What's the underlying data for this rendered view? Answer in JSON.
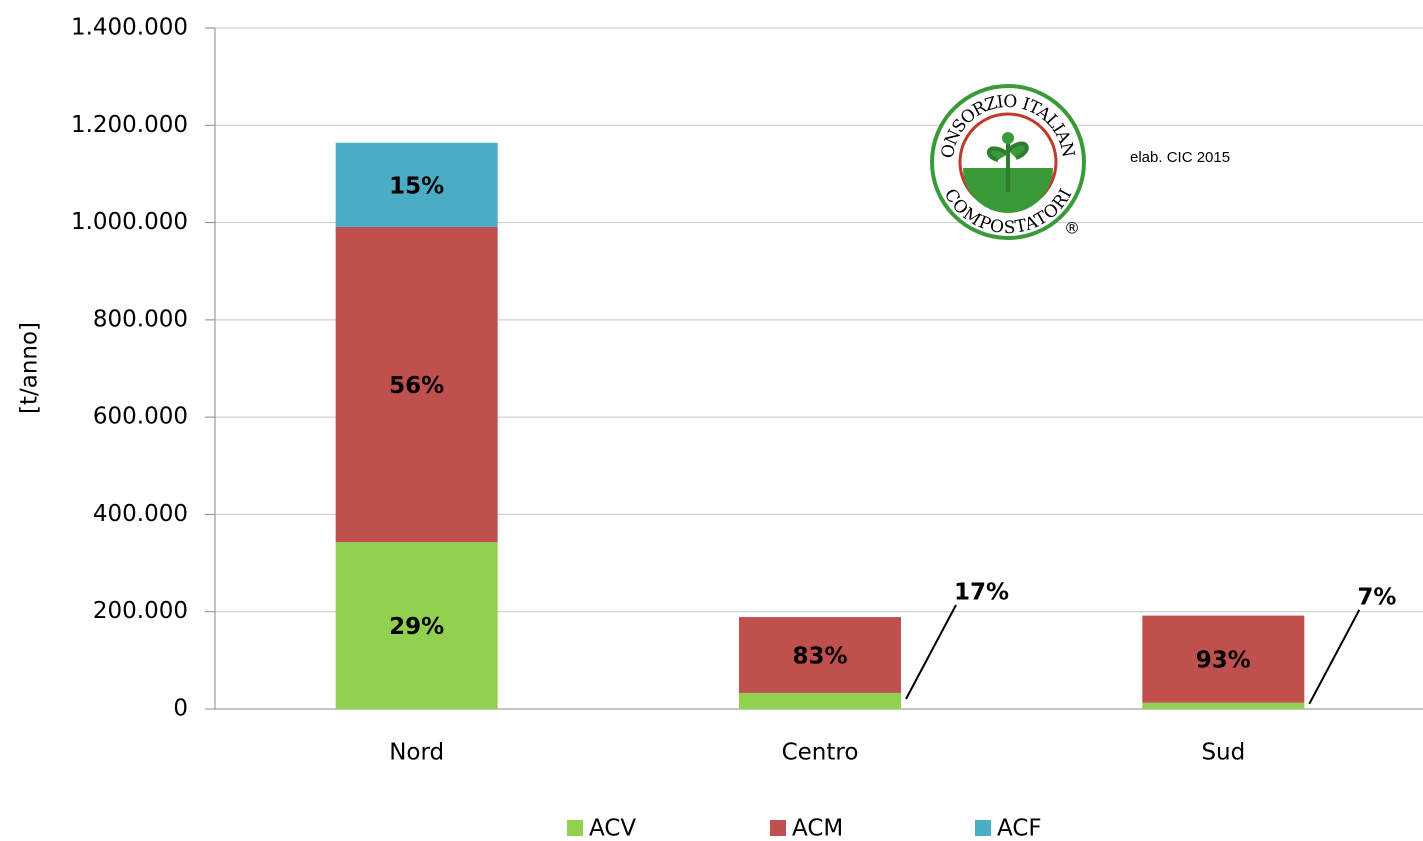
{
  "chart_data": {
    "type": "stacked_bar",
    "y_label": "[t/anno]",
    "categories": [
      "Nord",
      "Centro",
      "Sud"
    ],
    "series": [
      {
        "name": "ACV",
        "color": "#92d050",
        "values": [
          343000,
          33000,
          13000
        ],
        "value_labels": [
          "29%",
          "17%",
          "7%"
        ]
      },
      {
        "name": "ACM",
        "color": "#c0504d",
        "values": [
          648000,
          156000,
          179000
        ],
        "value_labels": [
          "56%",
          "83%",
          "93%"
        ]
      },
      {
        "name": "ACF",
        "color": "#4bacc6",
        "values": [
          173000,
          0,
          0
        ],
        "value_labels": [
          "15%",
          null,
          null
        ]
      }
    ],
    "ylim": [
      0,
      1400000
    ],
    "yticks": [
      0,
      {
        "value": 200000,
        "label": "200.000"
      },
      {
        "value": 400000,
        "label": "400.000"
      },
      {
        "value": 600000,
        "label": "600.000"
      },
      {
        "value": 800000,
        "label": "800.000"
      },
      {
        "value": 1000000,
        "label": "1.000.000"
      },
      {
        "value": 1200000,
        "label": "1.200.000"
      },
      {
        "value": 1400000,
        "label": "1.400.000"
      }
    ],
    "grid": true,
    "legend": "bottom",
    "note": "elab. CIC 2015",
    "logo": {
      "top_text": "CONSORZIO ITALIANO",
      "bottom_text": "COMPOSTATORI",
      "mark": "®"
    }
  }
}
